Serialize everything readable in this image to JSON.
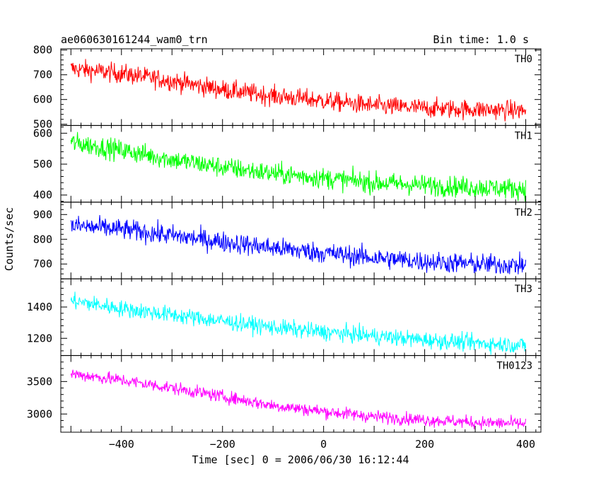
{
  "header": {
    "title": "ae060630161244_wam0_trn",
    "bin_time": "Bin time: 1.0 s"
  },
  "axes": {
    "ylabel": "Counts/sec",
    "xlabel": "Time [sec] 0 = 2006/06/30 16:12:44"
  },
  "chart_data": {
    "type": "line",
    "title": "ae060630161244_wam0_trn",
    "xlabel": "Time [sec] 0 = 2006/06/30 16:12:44",
    "ylabel": "Counts/sec",
    "xlim": [
      -520,
      430
    ],
    "x_ticks": [
      -400,
      -200,
      0,
      200,
      400
    ],
    "x_tick_labels": [
      "−400",
      "−200",
      "0",
      "200",
      "400"
    ],
    "x_start": -500,
    "x_end": 400,
    "x_step": 1,
    "panels": [
      {
        "name": "TH0",
        "color": "#ff0000",
        "ylim": [
          495,
          805
        ],
        "ticks": [
          500,
          600,
          700,
          800
        ],
        "trend_x": [
          -500,
          -400,
          -300,
          -200,
          -100,
          0,
          100,
          200,
          300,
          400
        ],
        "trend_y": [
          725,
          705,
          675,
          640,
          615,
          595,
          575,
          565,
          560,
          555
        ],
        "noise": 28
      },
      {
        "name": "TH1",
        "color": "#00ff00",
        "ylim": [
          377,
          625
        ],
        "ticks": [
          400,
          500,
          600
        ],
        "trend_x": [
          -500,
          -400,
          -300,
          -200,
          -100,
          0,
          100,
          200,
          300,
          400
        ],
        "trend_y": [
          570,
          545,
          515,
          490,
          470,
          455,
          440,
          432,
          425,
          420
        ],
        "noise": 24
      },
      {
        "name": "TH2",
        "color": "#0000ff",
        "ylim": [
          640,
          950
        ],
        "ticks": [
          700,
          800,
          900
        ],
        "trend_x": [
          -500,
          -400,
          -300,
          -200,
          -100,
          0,
          100,
          200,
          300,
          400
        ],
        "trend_y": [
          855,
          840,
          815,
          790,
          765,
          745,
          725,
          710,
          700,
          695
        ],
        "noise": 30
      },
      {
        "name": "TH3",
        "color": "#00ffff",
        "ylim": [
          1090,
          1580
        ],
        "ticks": [
          1200,
          1400
        ],
        "trend_x": [
          -500,
          -400,
          -300,
          -200,
          -100,
          0,
          100,
          200,
          300,
          400
        ],
        "trend_y": [
          1440,
          1390,
          1350,
          1310,
          1270,
          1240,
          1215,
          1190,
          1170,
          1155
        ],
        "noise": 38
      },
      {
        "name": "TH0123",
        "color": "#ff00ff",
        "ylim": [
          2720,
          3900
        ],
        "ticks": [
          3000,
          3500
        ],
        "trend_x": [
          -500,
          -400,
          -300,
          -200,
          -100,
          0,
          100,
          200,
          300,
          400
        ],
        "trend_y": [
          3620,
          3520,
          3400,
          3270,
          3130,
          3040,
          2960,
          2910,
          2870,
          2850
        ],
        "noise": 70
      }
    ]
  }
}
